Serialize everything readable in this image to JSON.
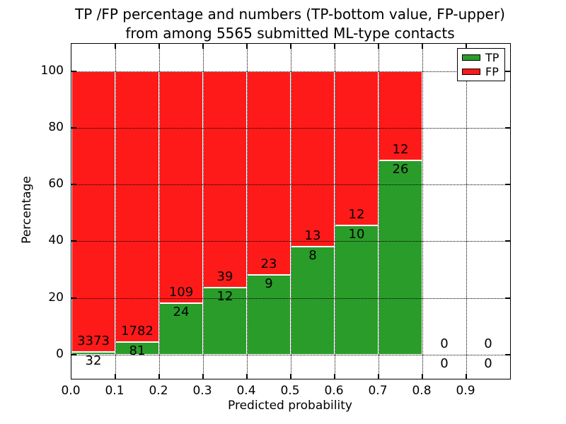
{
  "title": {
    "line1": "TP /FP percentage and numbers (TP-bottom value, FP-upper)",
    "line2": "from among 5565 submitted ML-type contacts"
  },
  "axes": {
    "xlabel": "Predicted probability",
    "ylabel": "Percentage"
  },
  "legend": {
    "entries": [
      {
        "label": "TP",
        "color": "#2a9c2a"
      },
      {
        "label": "FP",
        "color": "#ff1a1a"
      }
    ]
  },
  "chart_data": {
    "type": "bar",
    "subtype": "stacked-percentage-histogram",
    "title": "TP /FP percentage and numbers (TP-bottom value, FP-upper)\nfrom among 5565 submitted ML-type contacts",
    "xlabel": "Predicted probability",
    "ylabel": "Percentage",
    "total_contacts": 5565,
    "bin_edges": [
      0.0,
      0.1,
      0.2,
      0.3,
      0.4,
      0.5,
      0.6,
      0.7,
      0.8,
      0.9,
      1.0
    ],
    "x_ticks": [
      0.0,
      0.1,
      0.2,
      0.3,
      0.4,
      0.5,
      0.6,
      0.7,
      0.8,
      0.9
    ],
    "x_tick_labels": [
      "0.0",
      "0.1",
      "0.2",
      "0.3",
      "0.4",
      "0.5",
      "0.6",
      "0.7",
      "0.8",
      "0.9"
    ],
    "y_ticks": [
      0,
      20,
      40,
      60,
      80,
      100
    ],
    "xlim": [
      0.0,
      1.0
    ],
    "ylim": [
      -8.5,
      109.6
    ],
    "grid": "dotted",
    "legend_position": "upper right",
    "series": [
      {
        "name": "TP",
        "color": "#2a9c2a",
        "counts": [
          32,
          81,
          24,
          12,
          9,
          8,
          10,
          26,
          0,
          0
        ]
      },
      {
        "name": "FP",
        "color": "#ff1a1a",
        "counts": [
          3373,
          1782,
          109,
          39,
          23,
          13,
          12,
          12,
          0,
          0
        ]
      }
    ],
    "tp_height_percent": [
      0.94,
      4.35,
      18.05,
      23.53,
      28.13,
      38.1,
      45.45,
      68.42,
      0,
      0
    ]
  }
}
